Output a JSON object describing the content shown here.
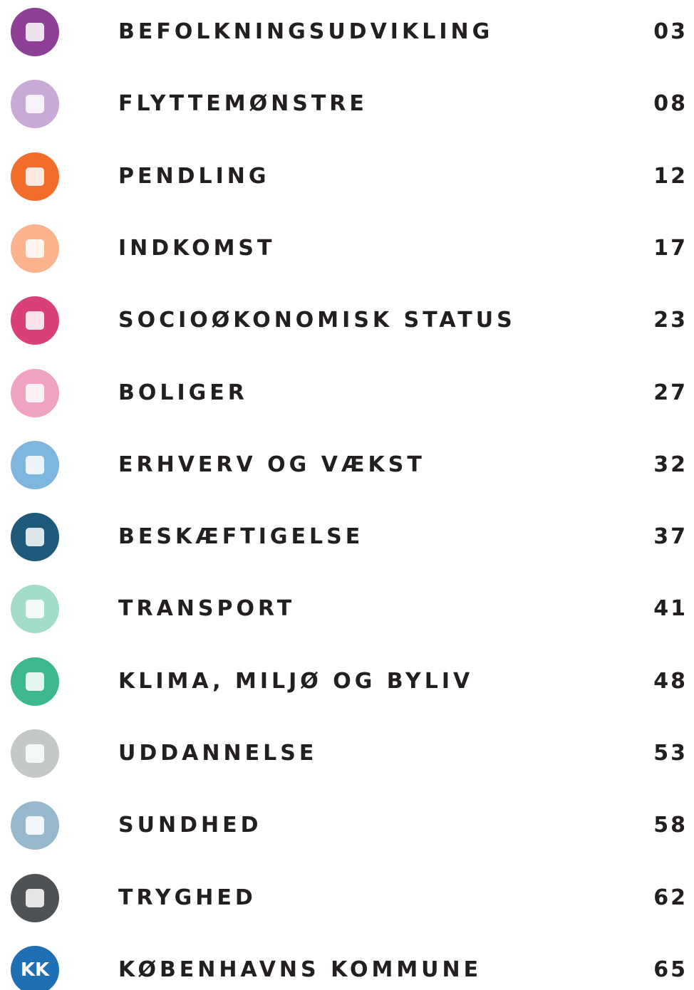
{
  "toc": {
    "items": [
      {
        "title": "BEFOLKNINGSUDVIKLING",
        "page": "03",
        "color": "#8e3f96"
      },
      {
        "title": "FLYTTEMØNSTRE",
        "page": "08",
        "color": "#c9a9d6"
      },
      {
        "title": "PENDLING",
        "page": "12",
        "color": "#f26c2a"
      },
      {
        "title": "INDKOMST",
        "page": "17",
        "color": "#fcb28c"
      },
      {
        "title": "SOCIOØKONOMISK STATUS",
        "page": "23",
        "color": "#d9407a"
      },
      {
        "title": "BOLIGER",
        "page": "27",
        "color": "#eea3c2"
      },
      {
        "title": "ERHVERV OG VÆKST",
        "page": "32",
        "color": "#7fb6e0"
      },
      {
        "title": "BESKÆFTIGELSE",
        "page": "37",
        "color": "#1f5a7a"
      },
      {
        "title": "TRANSPORT",
        "page": "41",
        "color": "#a4dcca"
      },
      {
        "title": "KLIMA, MILJØ OG BYLIV",
        "page": "48",
        "color": "#3cb88d"
      },
      {
        "title": "UDDANNELSE",
        "page": "53",
        "color": "#c4c9c6"
      },
      {
        "title": "SUNDHED",
        "page": "58",
        "color": "#96b8cc"
      },
      {
        "title": "TRYGHED",
        "page": "62",
        "color": "#4f5254"
      },
      {
        "title": "KØBENHAVNS KOMMUNE",
        "page": "65",
        "color": "#1f6fb5",
        "icon_text": "KK"
      }
    ]
  }
}
